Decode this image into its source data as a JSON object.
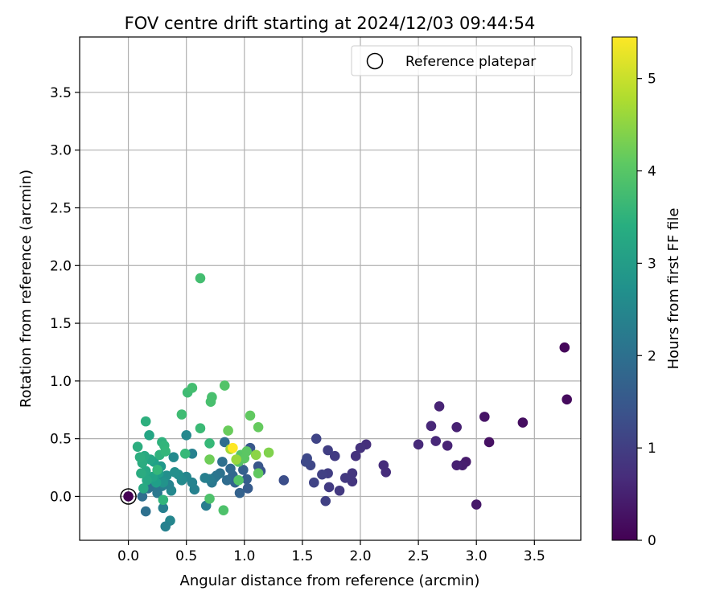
{
  "chart_data": {
    "type": "scatter",
    "title": "FOV centre drift starting at 2024/12/03 09:44:54",
    "xlabel": "Angular distance from reference (arcmin)",
    "ylabel": "Rotation from reference (arcmin)",
    "xlim": [
      -0.42,
      3.9
    ],
    "ylim": [
      -0.38,
      3.98
    ],
    "xticks": [
      0.0,
      0.5,
      1.0,
      1.5,
      2.0,
      2.5,
      3.0,
      3.5
    ],
    "xtick_labels": [
      "0.0",
      "0.5",
      "1.0",
      "1.5",
      "2.0",
      "2.5",
      "3.0",
      "3.5"
    ],
    "yticks": [
      0.0,
      0.5,
      1.0,
      1.5,
      2.0,
      2.5,
      3.0,
      3.5
    ],
    "ytick_labels": [
      "0.0",
      "0.5",
      "1.0",
      "1.5",
      "2.0",
      "2.5",
      "3.0",
      "3.5"
    ],
    "grid": true,
    "legend": {
      "placement": "upper-right",
      "entries": [
        "Reference platepar"
      ]
    },
    "reference_point": {
      "x": 0.0,
      "y": 0.0
    },
    "colorbar": {
      "label": "Hours from first FF file",
      "range": [
        0,
        5.45
      ],
      "ticks": [
        0,
        1,
        2,
        3,
        4,
        5
      ],
      "tick_labels": [
        "0",
        "1",
        "2",
        "3",
        "4",
        "5"
      ],
      "colormap": "viridis"
    },
    "points": [
      {
        "x": 0.0,
        "y": 0.0,
        "t": 0.0
      },
      {
        "x": 3.76,
        "y": 1.29,
        "t": 0.1
      },
      {
        "x": 3.78,
        "y": 0.84,
        "t": 0.15
      },
      {
        "x": 3.4,
        "y": 0.64,
        "t": 0.2
      },
      {
        "x": 3.11,
        "y": 0.47,
        "t": 0.25
      },
      {
        "x": 3.07,
        "y": 0.69,
        "t": 0.3
      },
      {
        "x": 3.0,
        "y": -0.07,
        "t": 0.35
      },
      {
        "x": 2.91,
        "y": 0.3,
        "t": 0.4
      },
      {
        "x": 2.88,
        "y": 0.27,
        "t": 0.45
      },
      {
        "x": 2.83,
        "y": 0.27,
        "t": 0.5
      },
      {
        "x": 2.83,
        "y": 0.6,
        "t": 0.5
      },
      {
        "x": 2.75,
        "y": 0.44,
        "t": 0.55
      },
      {
        "x": 2.68,
        "y": 0.78,
        "t": 0.55
      },
      {
        "x": 2.65,
        "y": 0.48,
        "t": 0.6
      },
      {
        "x": 2.61,
        "y": 0.61,
        "t": 0.6
      },
      {
        "x": 2.5,
        "y": 0.45,
        "t": 0.65
      },
      {
        "x": 2.22,
        "y": 0.21,
        "t": 0.7
      },
      {
        "x": 2.2,
        "y": 0.27,
        "t": 0.7
      },
      {
        "x": 2.05,
        "y": 0.45,
        "t": 0.75
      },
      {
        "x": 2.0,
        "y": 0.42,
        "t": 0.8
      },
      {
        "x": 1.96,
        "y": 0.35,
        "t": 0.8
      },
      {
        "x": 1.93,
        "y": 0.13,
        "t": 0.85
      },
      {
        "x": 1.93,
        "y": 0.2,
        "t": 0.85
      },
      {
        "x": 1.87,
        "y": 0.16,
        "t": 0.9
      },
      {
        "x": 1.82,
        "y": 0.05,
        "t": 0.9
      },
      {
        "x": 1.78,
        "y": 0.35,
        "t": 0.95
      },
      {
        "x": 1.73,
        "y": 0.08,
        "t": 0.95
      },
      {
        "x": 1.72,
        "y": 0.2,
        "t": 1.0
      },
      {
        "x": 1.72,
        "y": 0.4,
        "t": 1.0
      },
      {
        "x": 1.7,
        "y": -0.04,
        "t": 1.05
      },
      {
        "x": 1.67,
        "y": 0.19,
        "t": 1.05
      },
      {
        "x": 1.62,
        "y": 0.5,
        "t": 1.1
      },
      {
        "x": 1.6,
        "y": 0.12,
        "t": 1.1
      },
      {
        "x": 1.57,
        "y": 0.27,
        "t": 1.15
      },
      {
        "x": 1.54,
        "y": 0.33,
        "t": 1.2
      },
      {
        "x": 1.53,
        "y": 0.3,
        "t": 1.2
      },
      {
        "x": 1.34,
        "y": 0.14,
        "t": 1.3
      },
      {
        "x": 1.14,
        "y": 0.22,
        "t": 1.4
      },
      {
        "x": 1.12,
        "y": 0.26,
        "t": 1.45
      },
      {
        "x": 1.05,
        "y": 0.42,
        "t": 1.5
      },
      {
        "x": 1.03,
        "y": 0.07,
        "t": 1.55
      },
      {
        "x": 1.02,
        "y": 0.15,
        "t": 1.6
      },
      {
        "x": 0.99,
        "y": 0.23,
        "t": 1.65
      },
      {
        "x": 0.96,
        "y": 0.03,
        "t": 1.7
      },
      {
        "x": 0.92,
        "y": 0.12,
        "t": 1.75
      },
      {
        "x": 0.9,
        "y": 0.18,
        "t": 1.8
      },
      {
        "x": 0.88,
        "y": 0.24,
        "t": 1.85
      },
      {
        "x": 0.85,
        "y": 0.14,
        "t": 1.9
      },
      {
        "x": 0.83,
        "y": 0.47,
        "t": 1.95
      },
      {
        "x": 0.81,
        "y": 0.3,
        "t": 2.0
      },
      {
        "x": 0.79,
        "y": 0.2,
        "t": 2.05
      },
      {
        "x": 0.76,
        "y": 0.18,
        "t": 2.1
      },
      {
        "x": 0.74,
        "y": 0.16,
        "t": 2.15
      },
      {
        "x": 0.72,
        "y": 0.12,
        "t": 2.2
      },
      {
        "x": 0.7,
        "y": 0.15,
        "t": 2.25
      },
      {
        "x": 0.67,
        "y": -0.08,
        "t": 2.3
      },
      {
        "x": 0.66,
        "y": 0.16,
        "t": 2.35
      },
      {
        "x": 0.57,
        "y": 0.06,
        "t": 2.4
      },
      {
        "x": 0.55,
        "y": 0.12,
        "t": 2.45
      },
      {
        "x": 0.5,
        "y": 0.17,
        "t": 2.5
      },
      {
        "x": 0.5,
        "y": 0.53,
        "t": 2.55
      },
      {
        "x": 0.46,
        "y": 0.14,
        "t": 2.6
      },
      {
        "x": 0.43,
        "y": 0.19,
        "t": 2.65
      },
      {
        "x": 0.4,
        "y": 0.21,
        "t": 2.7
      },
      {
        "x": 0.37,
        "y": 0.05,
        "t": 2.55
      },
      {
        "x": 0.36,
        "y": -0.21,
        "t": 2.5
      },
      {
        "x": 0.35,
        "y": 0.1,
        "t": 2.45
      },
      {
        "x": 0.32,
        "y": -0.26,
        "t": 2.4
      },
      {
        "x": 0.3,
        "y": -0.1,
        "t": 2.35
      },
      {
        "x": 0.29,
        "y": 0.09,
        "t": 2.3
      },
      {
        "x": 0.27,
        "y": 0.15,
        "t": 2.25
      },
      {
        "x": 0.25,
        "y": 0.03,
        "t": 2.2
      },
      {
        "x": 0.23,
        "y": 0.08,
        "t": 2.15
      },
      {
        "x": 0.2,
        "y": 0.11,
        "t": 2.1
      },
      {
        "x": 0.17,
        "y": 0.07,
        "t": 2.05
      },
      {
        "x": 0.15,
        "y": -0.13,
        "t": 2.0
      },
      {
        "x": 0.12,
        "y": 0.0,
        "t": 1.95
      },
      {
        "x": 0.55,
        "y": 0.37,
        "t": 2.4
      },
      {
        "x": 0.39,
        "y": 0.34,
        "t": 2.6
      },
      {
        "x": 0.33,
        "y": 0.18,
        "t": 2.7
      },
      {
        "x": 0.3,
        "y": 0.12,
        "t": 2.8
      },
      {
        "x": 0.28,
        "y": 0.26,
        "t": 2.9
      },
      {
        "x": 0.26,
        "y": 0.2,
        "t": 3.0
      },
      {
        "x": 0.24,
        "y": 0.12,
        "t": 3.05
      },
      {
        "x": 0.22,
        "y": 0.3,
        "t": 3.1
      },
      {
        "x": 0.21,
        "y": 0.17,
        "t": 3.15
      },
      {
        "x": 0.19,
        "y": 0.32,
        "t": 3.2
      },
      {
        "x": 0.18,
        "y": 0.53,
        "t": 3.2
      },
      {
        "x": 0.16,
        "y": 0.14,
        "t": 3.25
      },
      {
        "x": 0.15,
        "y": 0.22,
        "t": 3.25
      },
      {
        "x": 0.14,
        "y": 0.35,
        "t": 3.3
      },
      {
        "x": 0.13,
        "y": 0.07,
        "t": 3.3
      },
      {
        "x": 0.12,
        "y": 0.29,
        "t": 3.35
      },
      {
        "x": 0.11,
        "y": 0.2,
        "t": 3.35
      },
      {
        "x": 0.1,
        "y": 0.34,
        "t": 3.4
      },
      {
        "x": 0.08,
        "y": 0.43,
        "t": 3.4
      },
      {
        "x": 0.15,
        "y": 0.65,
        "t": 3.45
      },
      {
        "x": 0.27,
        "y": 0.36,
        "t": 3.5
      },
      {
        "x": 0.29,
        "y": 0.47,
        "t": 3.5
      },
      {
        "x": 0.31,
        "y": 0.44,
        "t": 3.55
      },
      {
        "x": 0.3,
        "y": -0.03,
        "t": 3.55
      },
      {
        "x": 0.32,
        "y": 0.39,
        "t": 3.6
      },
      {
        "x": 0.25,
        "y": 0.23,
        "t": 3.6
      },
      {
        "x": 0.49,
        "y": 0.37,
        "t": 3.65
      },
      {
        "x": 0.7,
        "y": 0.46,
        "t": 3.65
      },
      {
        "x": 0.62,
        "y": 0.59,
        "t": 3.7
      },
      {
        "x": 0.46,
        "y": 0.71,
        "t": 3.75
      },
      {
        "x": 0.51,
        "y": 0.9,
        "t": 3.75
      },
      {
        "x": 0.55,
        "y": 0.94,
        "t": 3.8
      },
      {
        "x": 0.62,
        "y": 1.89,
        "t": 3.8
      },
      {
        "x": 0.71,
        "y": 0.82,
        "t": 3.85
      },
      {
        "x": 0.72,
        "y": 0.86,
        "t": 3.85
      },
      {
        "x": 0.7,
        "y": -0.02,
        "t": 3.9
      },
      {
        "x": 0.82,
        "y": -0.12,
        "t": 3.9
      },
      {
        "x": 0.83,
        "y": 0.96,
        "t": 3.95
      },
      {
        "x": 0.95,
        "y": 0.14,
        "t": 3.95
      },
      {
        "x": 0.95,
        "y": 0.3,
        "t": 4.0
      },
      {
        "x": 0.97,
        "y": 0.36,
        "t": 4.0
      },
      {
        "x": 1.0,
        "y": 0.33,
        "t": 4.05
      },
      {
        "x": 1.02,
        "y": 0.39,
        "t": 4.05
      },
      {
        "x": 1.05,
        "y": 0.7,
        "t": 4.1
      },
      {
        "x": 1.12,
        "y": 0.2,
        "t": 4.1
      },
      {
        "x": 1.12,
        "y": 0.6,
        "t": 4.15
      },
      {
        "x": 0.86,
        "y": 0.57,
        "t": 4.2
      },
      {
        "x": 0.7,
        "y": 0.32,
        "t": 4.25
      },
      {
        "x": 1.21,
        "y": 0.38,
        "t": 4.4
      },
      {
        "x": 1.1,
        "y": 0.36,
        "t": 4.5
      },
      {
        "x": 0.93,
        "y": 0.32,
        "t": 4.6
      },
      {
        "x": 0.88,
        "y": 0.41,
        "t": 4.7
      },
      {
        "x": 0.9,
        "y": 0.42,
        "t": 5.45
      }
    ]
  }
}
